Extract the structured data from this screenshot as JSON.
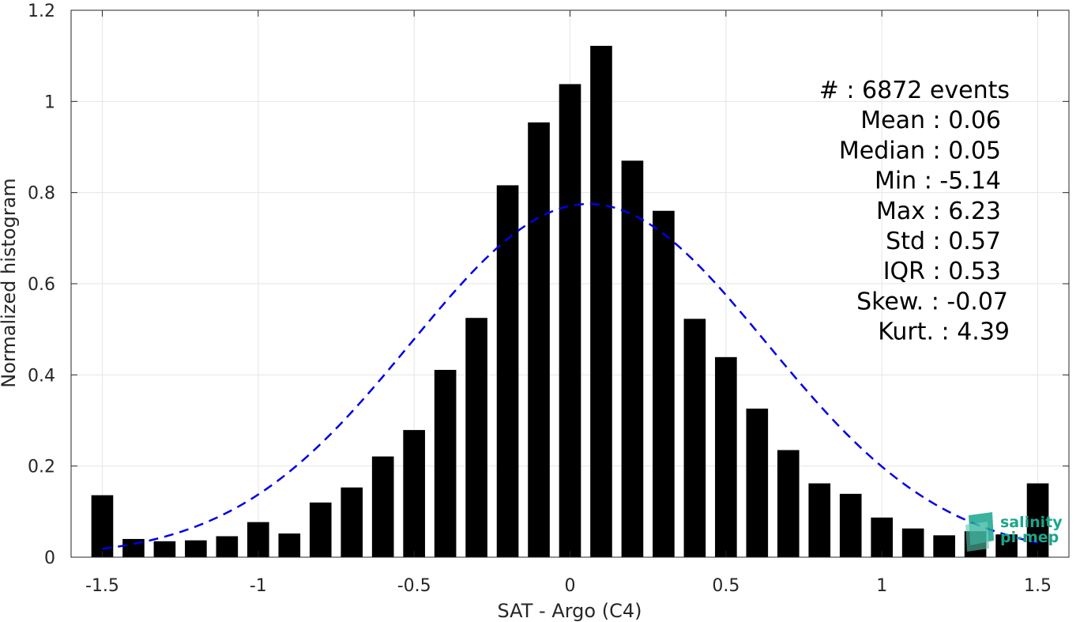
{
  "chart_data": {
    "type": "bar",
    "xlabel": "SAT - Argo (C4)",
    "ylabel": "Normalized histogram",
    "xlim": [
      -1.6,
      1.6
    ],
    "ylim": [
      0,
      1.2
    ],
    "grid": true,
    "x_ticks": [
      -1.5,
      -1,
      -0.5,
      0,
      0.5,
      1,
      1.5
    ],
    "x_tick_labels": [
      "-1.5",
      "-1",
      "-0.5",
      "0",
      "0.5",
      "1",
      "1.5"
    ],
    "y_ticks": [
      0,
      0.2,
      0.4,
      0.6,
      0.8,
      1,
      1.2
    ],
    "y_tick_labels": [
      "0",
      "0.2",
      "0.4",
      "0.6",
      "0.8",
      "1",
      "1.2"
    ],
    "bin_width": 0.1,
    "bar_color": "#000000",
    "bins": [
      -1.5,
      -1.4,
      -1.3,
      -1.2,
      -1.1,
      -1.0,
      -0.9,
      -0.8,
      -0.7,
      -0.6,
      -0.5,
      -0.4,
      -0.3,
      -0.2,
      -0.1,
      0.0,
      0.1,
      0.2,
      0.3,
      0.4,
      0.5,
      0.6,
      0.7,
      0.8,
      0.9,
      1.0,
      1.1,
      1.2,
      1.3,
      1.4,
      1.5
    ],
    "values": [
      0.136,
      0.04,
      0.035,
      0.037,
      0.046,
      0.077,
      0.052,
      0.12,
      0.153,
      0.221,
      0.279,
      0.411,
      0.525,
      0.816,
      0.954,
      1.038,
      1.122,
      0.87,
      0.76,
      0.523,
      0.439,
      0.326,
      0.235,
      0.162,
      0.139,
      0.087,
      0.063,
      0.048,
      0.057,
      0.05,
      0.162
    ],
    "fit_curve": {
      "type": "gaussian",
      "mean": 0.06,
      "std": 0.57,
      "peak": 0.775,
      "color": "#0000e6",
      "style": "dashed"
    },
    "annotation": {
      "placement": "top-right",
      "lines": [
        "#  : 6872 events",
        "Mean : 0.06",
        "Median : 0.05",
        "Min : -5.14",
        "Max : 6.23",
        "Std : 0.57",
        "IQR : 0.53",
        "Skew. : -0.07",
        "Kurt. : 4.39"
      ]
    }
  },
  "logo": {
    "line1": "salinity",
    "line2": "pi-mep",
    "color": "#1aa58c",
    "placement": "bottom-right"
  }
}
